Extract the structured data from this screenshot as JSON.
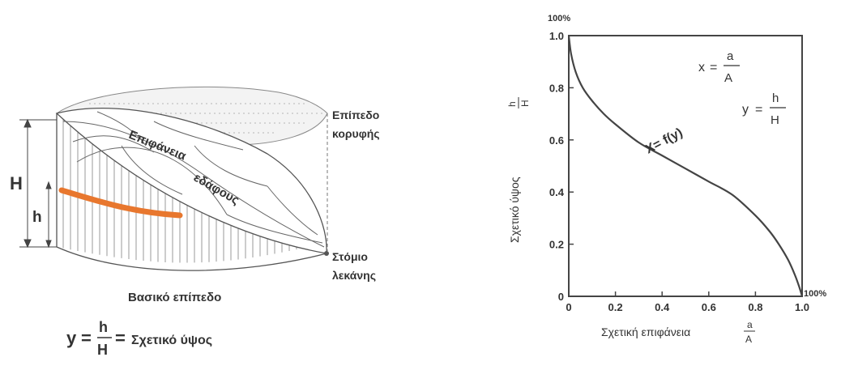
{
  "left_diagram": {
    "top_plane_label": [
      "Επίπεδο",
      "κορυφής"
    ],
    "ground_surface_label": [
      "Επιφάνεια",
      "εδάφους"
    ],
    "outlet_label": [
      "Στόμιο",
      "λεκάνης"
    ],
    "base_plane_label": "Βασικό επίπεδο",
    "dimension_H": "H",
    "dimension_h": "h",
    "formula": {
      "lhs": "y",
      "eq1": "=",
      "numerator": "h",
      "denominator": "H",
      "eq2": "=",
      "rhs": "Σχετικό ύψος"
    },
    "colors": {
      "contour_band": "#e8772e",
      "line": "#555555"
    }
  },
  "chart_data": {
    "type": "line",
    "title": "",
    "xlabel": "Σχετική επιφάνεια",
    "xlabel_fraction": {
      "numerator": "a",
      "denominator": "A"
    },
    "ylabel": "Σχετικό ύψος",
    "ylabel_fraction": {
      "numerator": "h",
      "denominator": "H"
    },
    "xlim": [
      0,
      1.0
    ],
    "ylim": [
      0,
      1.0
    ],
    "x_ticks": [
      {
        "value": 0,
        "label": "0"
      },
      {
        "value": 0.2,
        "label": "0.2"
      },
      {
        "value": 0.4,
        "label": "0.4"
      },
      {
        "value": 0.6,
        "label": "0.6"
      },
      {
        "value": 0.8,
        "label": "0.8"
      },
      {
        "value": 1.0,
        "label": "1.0"
      }
    ],
    "y_ticks": [
      {
        "value": 0,
        "label": "0"
      },
      {
        "value": 0.2,
        "label": "0.2"
      },
      {
        "value": 0.4,
        "label": "0.4"
      },
      {
        "value": 0.6,
        "label": "0.6"
      },
      {
        "value": 0.8,
        "label": "0.8"
      },
      {
        "value": 1.0,
        "label": "1.0"
      }
    ],
    "grid": false,
    "series": [
      {
        "name": "X= f(y)",
        "x": [
          0,
          0.01,
          0.03,
          0.06,
          0.1,
          0.15,
          0.2,
          0.3,
          0.4,
          0.5,
          0.6,
          0.7,
          0.8,
          0.86,
          0.9,
          0.94,
          0.97,
          0.99,
          1.0
        ],
        "y": [
          1.0,
          0.93,
          0.86,
          0.8,
          0.75,
          0.7,
          0.66,
          0.59,
          0.54,
          0.49,
          0.44,
          0.39,
          0.31,
          0.25,
          0.2,
          0.14,
          0.08,
          0.03,
          0
        ]
      }
    ],
    "annotations": {
      "top_left": "100%",
      "bottom_right": "100%",
      "formula_x": {
        "lhs": "x",
        "eq": "=",
        "numerator": "a",
        "denominator": "A"
      },
      "formula_y": {
        "lhs": "y",
        "eq": "=",
        "numerator": "h",
        "denominator": "H"
      }
    }
  }
}
